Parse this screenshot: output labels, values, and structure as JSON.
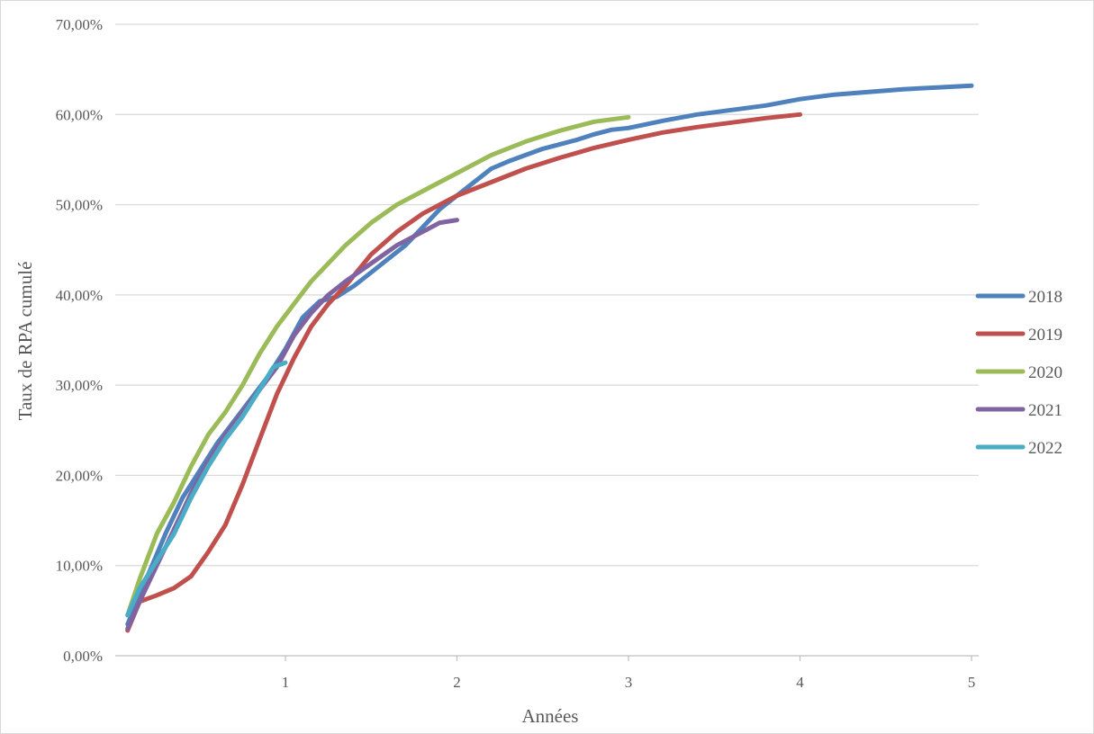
{
  "chart_data": {
    "type": "line",
    "title": "",
    "xlabel": "Années",
    "ylabel": "Taux de RPA  cumulé",
    "xlim": [
      0.05,
      5
    ],
    "ylim": [
      0,
      0.7
    ],
    "x_ticks": [
      1,
      2,
      3,
      4,
      5
    ],
    "x_tick_labels": [
      "1",
      "2",
      "3",
      "4",
      "5"
    ],
    "y_ticks": [
      0,
      0.1,
      0.2,
      0.3,
      0.4,
      0.5,
      0.6,
      0.7
    ],
    "y_tick_labels": [
      "0,00%",
      "10,00%",
      "20,00%",
      "30,00%",
      "40,00%",
      "50,00%",
      "60,00%",
      "70,00%"
    ],
    "grid": "horizontal",
    "legend_position": "right",
    "series": [
      {
        "name": "2018",
        "color": "#4f81bd",
        "x": [
          0.08,
          0.2,
          0.3,
          0.4,
          0.5,
          0.6,
          0.7,
          0.8,
          0.9,
          1.0,
          1.1,
          1.2,
          1.3,
          1.4,
          1.5,
          1.6,
          1.7,
          1.8,
          1.9,
          2.0,
          2.1,
          2.2,
          2.3,
          2.4,
          2.5,
          2.6,
          2.7,
          2.8,
          2.9,
          3.0,
          3.2,
          3.4,
          3.6,
          3.8,
          4.0,
          4.2,
          4.4,
          4.6,
          4.8,
          5.0
        ],
        "y": [
          0.035,
          0.09,
          0.135,
          0.175,
          0.205,
          0.235,
          0.26,
          0.285,
          0.31,
          0.34,
          0.375,
          0.393,
          0.398,
          0.41,
          0.425,
          0.44,
          0.455,
          0.475,
          0.495,
          0.51,
          0.525,
          0.54,
          0.548,
          0.555,
          0.562,
          0.567,
          0.572,
          0.578,
          0.583,
          0.585,
          0.593,
          0.6,
          0.605,
          0.61,
          0.617,
          0.622,
          0.625,
          0.628,
          0.63,
          0.632
        ]
      },
      {
        "name": "2019",
        "color": "#c0504d",
        "x": [
          0.08,
          0.15,
          0.25,
          0.35,
          0.45,
          0.55,
          0.65,
          0.75,
          0.85,
          0.95,
          1.05,
          1.15,
          1.25,
          1.35,
          1.5,
          1.65,
          1.8,
          2.0,
          2.2,
          2.4,
          2.6,
          2.8,
          3.0,
          3.2,
          3.4,
          3.6,
          3.8,
          4.0
        ],
        "y": [
          0.028,
          0.06,
          0.067,
          0.075,
          0.088,
          0.115,
          0.145,
          0.19,
          0.24,
          0.29,
          0.33,
          0.365,
          0.39,
          0.41,
          0.445,
          0.47,
          0.49,
          0.51,
          0.525,
          0.54,
          0.552,
          0.563,
          0.572,
          0.58,
          0.586,
          0.591,
          0.596,
          0.6
        ]
      },
      {
        "name": "2020",
        "color": "#9bbb59",
        "x": [
          0.08,
          0.15,
          0.25,
          0.35,
          0.45,
          0.55,
          0.65,
          0.75,
          0.85,
          0.95,
          1.05,
          1.15,
          1.25,
          1.35,
          1.5,
          1.65,
          1.8,
          2.0,
          2.2,
          2.4,
          2.6,
          2.8,
          3.0
        ],
        "y": [
          0.045,
          0.085,
          0.135,
          0.17,
          0.21,
          0.245,
          0.27,
          0.3,
          0.335,
          0.365,
          0.39,
          0.415,
          0.435,
          0.455,
          0.48,
          0.5,
          0.515,
          0.535,
          0.555,
          0.57,
          0.582,
          0.592,
          0.597
        ]
      },
      {
        "name": "2021",
        "color": "#8064a2",
        "x": [
          0.08,
          0.15,
          0.25,
          0.35,
          0.45,
          0.55,
          0.65,
          0.75,
          0.85,
          0.95,
          1.05,
          1.15,
          1.25,
          1.35,
          1.5,
          1.65,
          1.8,
          1.9,
          2.0
        ],
        "y": [
          0.03,
          0.06,
          0.1,
          0.14,
          0.18,
          0.215,
          0.245,
          0.27,
          0.295,
          0.32,
          0.355,
          0.38,
          0.4,
          0.415,
          0.435,
          0.455,
          0.47,
          0.48,
          0.483
        ]
      },
      {
        "name": "2022",
        "color": "#4bacc6",
        "x": [
          0.08,
          0.15,
          0.25,
          0.35,
          0.45,
          0.55,
          0.65,
          0.75,
          0.85,
          0.93,
          1.0
        ],
        "y": [
          0.045,
          0.075,
          0.105,
          0.135,
          0.175,
          0.21,
          0.24,
          0.265,
          0.295,
          0.32,
          0.325
        ]
      }
    ]
  }
}
